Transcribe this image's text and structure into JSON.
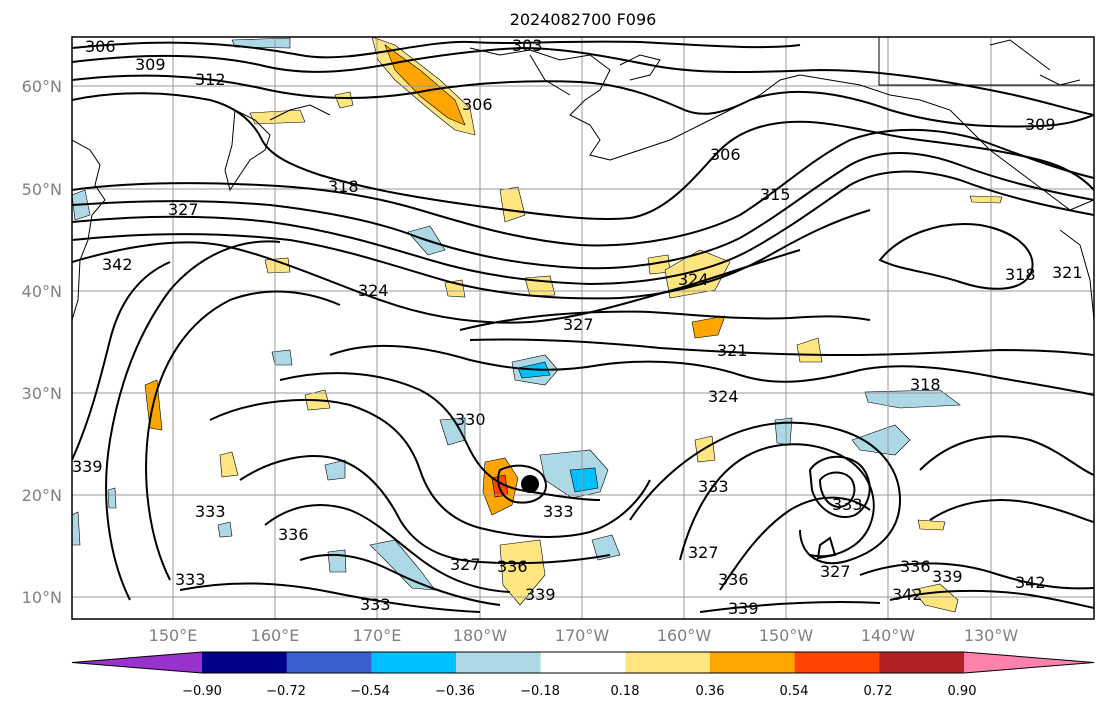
{
  "title": "2024082700 F096",
  "lat_labels": [
    "60°N",
    "50°N",
    "40°N",
    "30°N",
    "20°N",
    "10°N"
  ],
  "lon_labels": [
    "150°E",
    "160°E",
    "170°E",
    "180°W",
    "170°W",
    "160°W",
    "150°W",
    "140°W",
    "130°W"
  ],
  "contour_labels": [
    "306",
    "309",
    "312",
    "303",
    "306",
    "306",
    "309",
    "318",
    "327",
    "342",
    "324",
    "327",
    "315",
    "324",
    "318",
    "321",
    "321",
    "324",
    "318",
    "330",
    "339",
    "333",
    "336",
    "333",
    "327",
    "336",
    "339",
    "333",
    "333",
    "333",
    "327",
    "336",
    "339",
    "327",
    "336",
    "339",
    "342",
    "342",
    "333"
  ],
  "colorbar": {
    "ticks": [
      "−0.90",
      "−0.72",
      "−0.54",
      "−0.36",
      "−0.18",
      "0.18",
      "0.36",
      "0.54",
      "0.72",
      "0.90"
    ],
    "colors": [
      "#9932cc",
      "#00008b",
      "#3a5fcd",
      "#00bfff",
      "#add8e6",
      "#ffffff",
      "#ffe680",
      "#ffa500",
      "#ff4500",
      "#b22222",
      "#ff82ab"
    ]
  },
  "colors": {
    "grid": "#999999",
    "coast": "#000000",
    "contour": "#000000",
    "positive_light": "#ffe680",
    "positive_mid": "#ffa500",
    "positive_strong": "#ff4500",
    "negative_light": "#add8e6",
    "negative_mid": "#00bfff"
  },
  "marker": "storm-center-dot"
}
